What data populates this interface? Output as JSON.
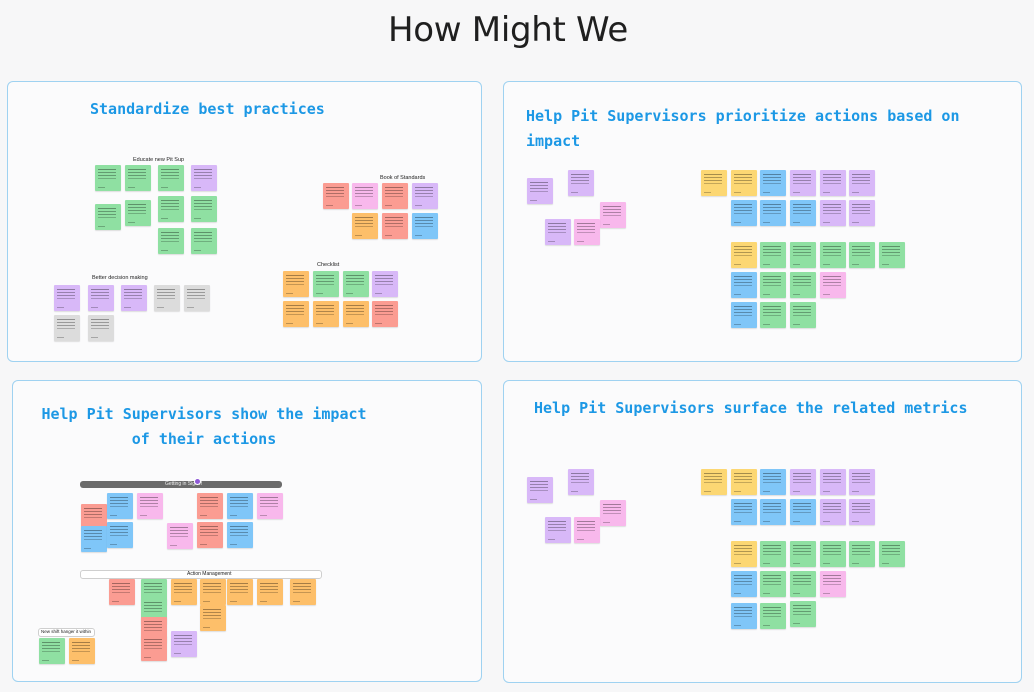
{
  "page": {
    "title": "How Might We"
  },
  "colors": {
    "border": "#9fd2f1",
    "title": "#1c98e5",
    "sticky_green": "#8fe0a2",
    "sticky_purple": "#d8b8f8",
    "sticky_blue": "#7fc6f8",
    "sticky_orange": "#fdbf6a",
    "sticky_yellow": "#fcd773",
    "sticky_pink": "#f8b8ec",
    "sticky_salmon": "#fb9c92",
    "sticky_gray": "#dcdcdc"
  },
  "boards": {
    "standardize": {
      "title": "Standardize best practices",
      "clusters": [
        "Educate new Pit Sup",
        "Book of Standards",
        "Better decision making",
        "Checklist"
      ]
    },
    "prioritize": {
      "title": "Help Pit Supervisors prioritize actions based on impact"
    },
    "show_impact": {
      "title": "Help Pit Supervisors show the impact of their actions",
      "bar_labels": [
        "Getting in Sign ff",
        "Action Management",
        "New shift hanger it within"
      ]
    },
    "metrics": {
      "title": "Help Pit Supervisors surface the related metrics"
    }
  }
}
